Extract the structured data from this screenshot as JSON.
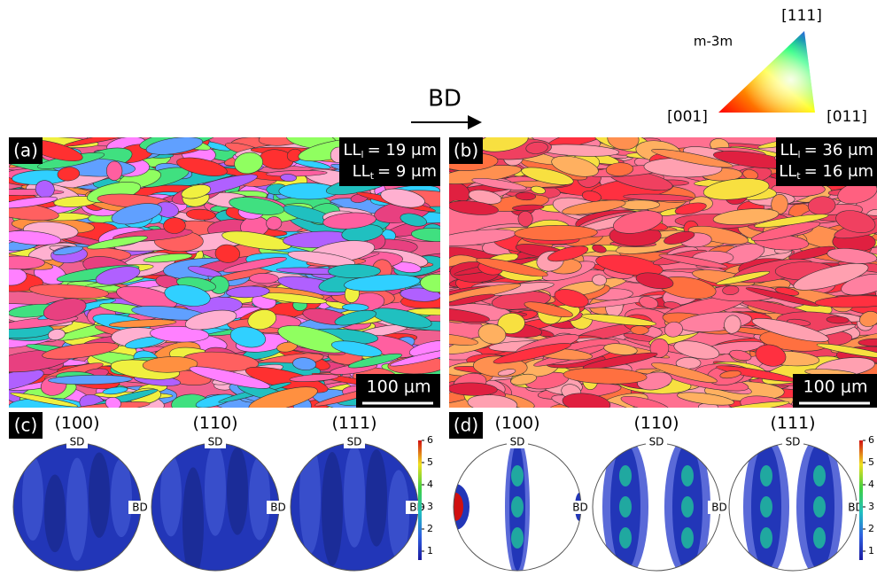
{
  "legend": {
    "symmetry": "m-3m",
    "top": "[111]",
    "left": "[001]",
    "right": "[011]"
  },
  "direction": "BD",
  "maps": [
    {
      "label": "(a)",
      "lines": [
        {
          "main": "LL",
          "sub": "l",
          "rest": "= 19 μm"
        },
        {
          "main": "LL",
          "sub": "t",
          "rest": "= 9 μm"
        }
      ],
      "scale": "100 μm"
    },
    {
      "label": "(b)",
      "lines": [
        {
          "main": "LL",
          "sub": "l",
          "rest": "= 36 μm"
        },
        {
          "main": "LL",
          "sub": "t",
          "rest": "= 16 μm"
        }
      ],
      "scale": "100 μm"
    }
  ],
  "pole_figures": [
    {
      "label": "(c)",
      "figures": [
        {
          "plane": "(100)",
          "top": "SD",
          "side": "BD"
        },
        {
          "plane": "(110)",
          "top": "SD",
          "side": "BD"
        },
        {
          "plane": "(111)",
          "top": "SD",
          "side": "BD"
        }
      ],
      "colorbar": [
        1,
        2,
        3,
        4,
        5,
        6
      ]
    },
    {
      "label": "(d)",
      "figures": [
        {
          "plane": "(100)",
          "top": "SD",
          "side": "BD"
        },
        {
          "plane": "(110)",
          "top": "SD",
          "side": "BD"
        },
        {
          "plane": "(111)",
          "top": "SD",
          "side": "BD"
        }
      ],
      "colorbar": [
        1,
        2,
        3,
        4,
        5,
        6
      ]
    }
  ]
}
